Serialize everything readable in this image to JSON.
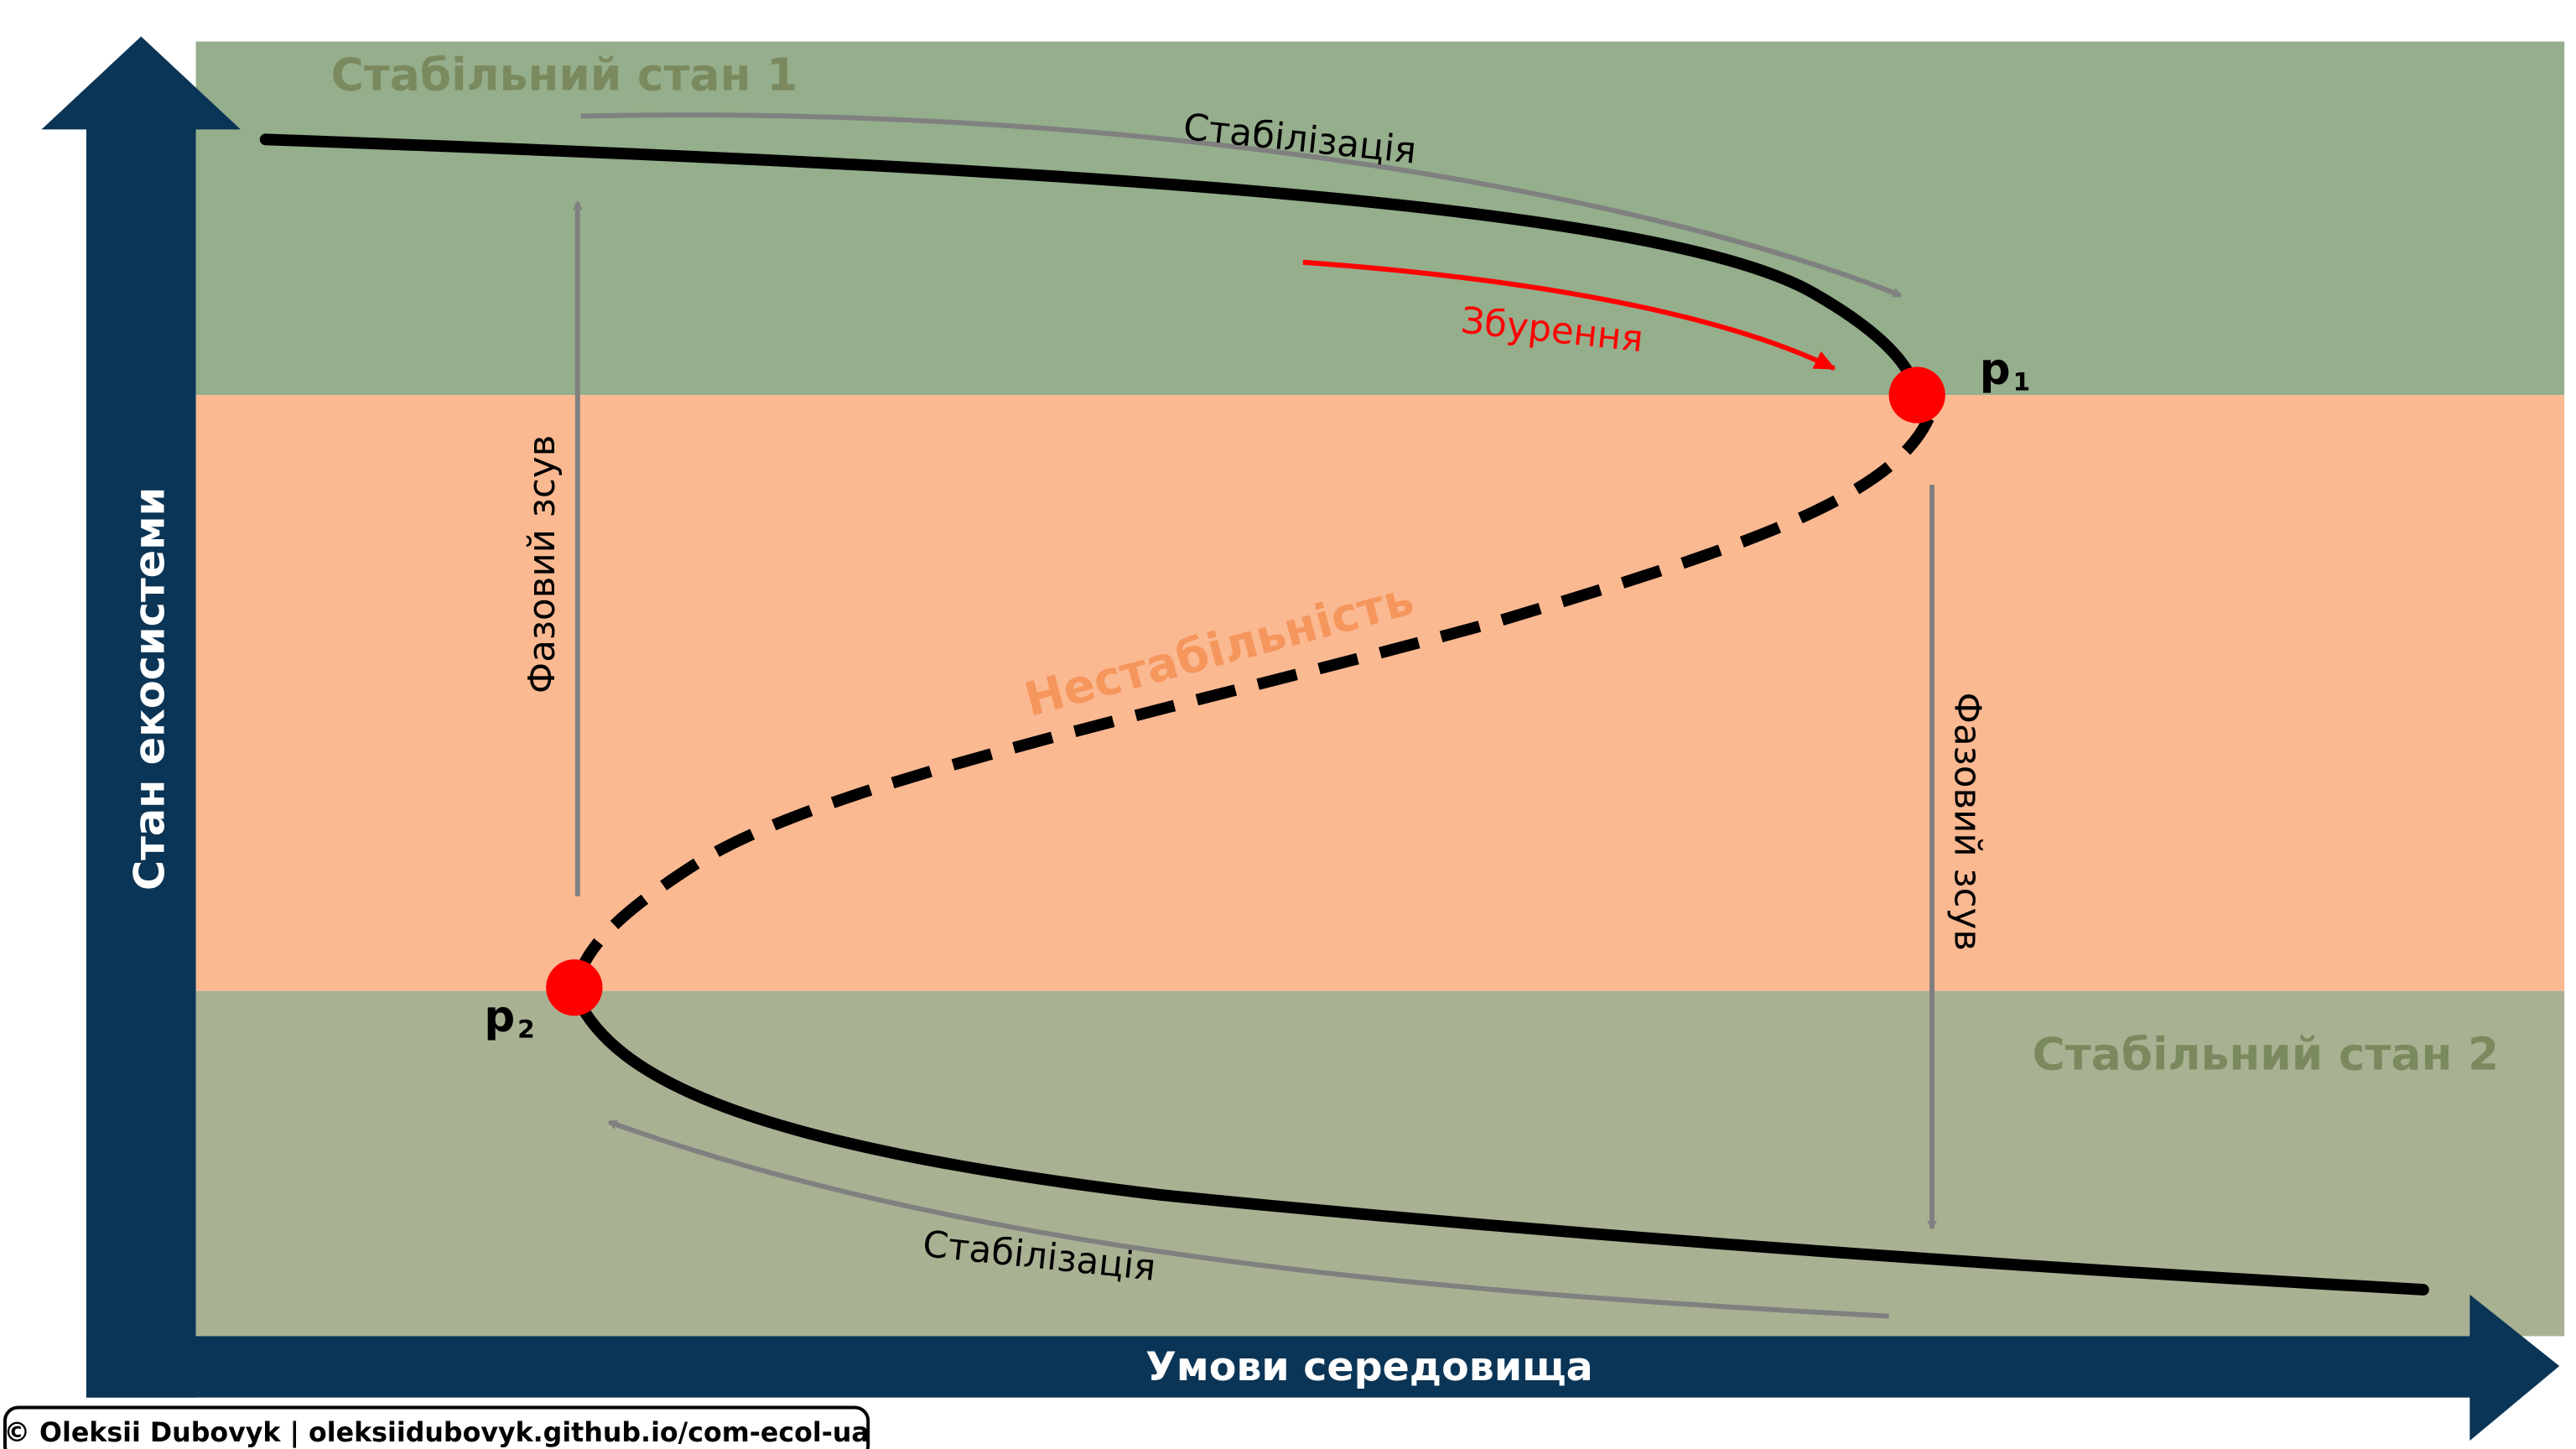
{
  "axes": {
    "y_label": "Стан екосистеми",
    "x_label": "Умови середовища"
  },
  "zones": {
    "stable_1": "Стабільний стан 1",
    "unstable": "Нестабільність",
    "stable_2": "Стабільний стан 2"
  },
  "arrows": {
    "stabilization_top": "Стабілізація",
    "perturbation": "Збурення",
    "phase_shift_left": "Фазовий зсув",
    "phase_shift_right": "Фазовий зсув",
    "stabilization_bottom": "Стабілізація"
  },
  "points": {
    "p1": {
      "letter": "p",
      "index": "1"
    },
    "p2": {
      "letter": "p",
      "index": "2"
    }
  },
  "footer": {
    "credit": "© Oleksii Dubovyk | oleksiidubovyk.github.io/com-ecol-ua"
  }
}
